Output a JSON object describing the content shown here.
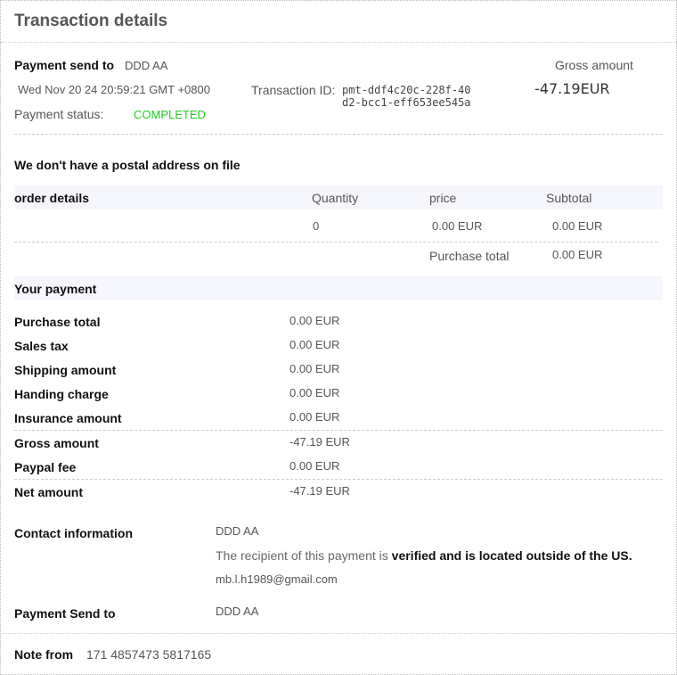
{
  "title": "Transaction details",
  "summary": {
    "send_to_label": "Payment send to",
    "send_to": "DDD AA",
    "date": "Wed Nov 20 24 20:59:21 GMT +0800",
    "txn_label": "Transaction ID:",
    "txn_id_1": "pmt-ddf4c20c-228f-40",
    "txn_id_2": "d2-bcc1-eff653ee545a",
    "status_label": "Payment status:",
    "status": "COMPLETED",
    "status_color": "#22cc22",
    "gross_label": "Gross amount",
    "gross": "-47.19EUR"
  },
  "postal": "We don't have a postal address on file",
  "order": {
    "headers": [
      "order details",
      "Quantity",
      "price",
      "Subtotal"
    ],
    "row": {
      "quantity": "0",
      "price": "0.00 EUR",
      "subtotal": "0.00 EUR"
    },
    "total_label": "Purchase total",
    "total": "0.00 EUR"
  },
  "payment": {
    "title": "Your payment",
    "rows": [
      {
        "label": "Purchase total",
        "value": "0.00 EUR"
      },
      {
        "label": "Sales tax",
        "value": "0.00 EUR"
      },
      {
        "label": "Shipping amount",
        "value": "0.00 EUR"
      },
      {
        "label": "Handing charge",
        "value": "0.00 EUR"
      },
      {
        "label": "Insurance amount",
        "value": "0.00 EUR"
      },
      {
        "label": "Gross amount",
        "value": "-47.19 EUR"
      },
      {
        "label": "Paypal fee",
        "value": "0.00 EUR"
      },
      {
        "label": "Net amount",
        "value": "-47.19 EUR"
      }
    ]
  },
  "contact": {
    "label": "Contact information",
    "name": "DDD AA",
    "verified_prefix": "The recipient of this payment is ",
    "verified_bold": "verified and is located outside of the US.",
    "email": "mb.l.h1989@gmail.com"
  },
  "send_to": {
    "label": "Payment Send to",
    "value": "DDD AA"
  },
  "note": {
    "label": "Note from",
    "value": "171 4857473 5817165"
  }
}
